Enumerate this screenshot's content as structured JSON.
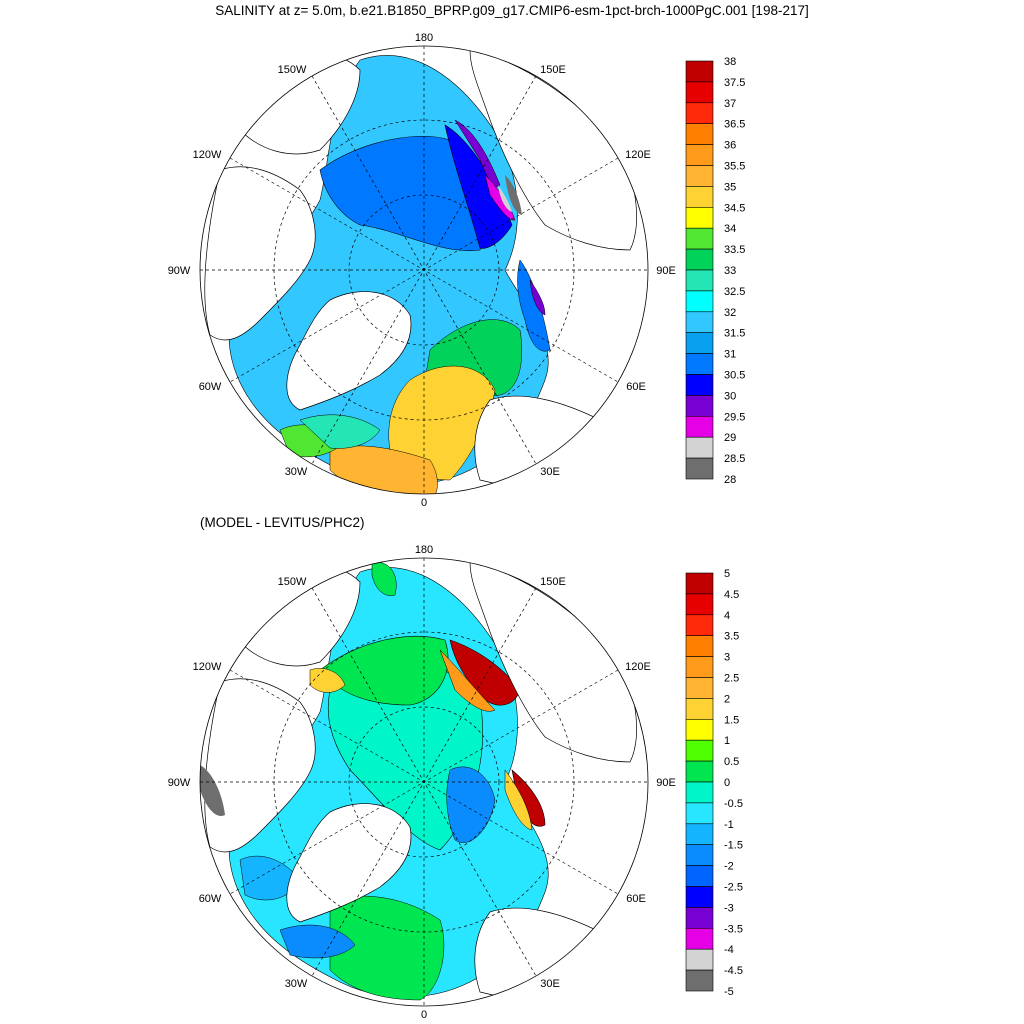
{
  "title": "SALINITY at z=   5.0m, b.e21.B1850_BPRP.g09_g17.CMIP6-esm-1pct-brch-1000PgC.001 [198-217]",
  "subtitle": "(MODEL - LEVITUS/PHC2)",
  "lon_labels": [
    "180",
    "150E",
    "120E",
    "90E",
    "60E",
    "30E",
    "0",
    "30W",
    "60W",
    "90W",
    "120W",
    "150W"
  ],
  "top_colorbar": {
    "labels": [
      "38",
      "37.5",
      "37",
      "36.5",
      "36",
      "35.5",
      "35",
      "34.5",
      "34",
      "33.5",
      "33",
      "32.5",
      "32",
      "31.5",
      "31",
      "30.5",
      "30",
      "29.5",
      "29",
      "28.5",
      "28"
    ],
    "colors": [
      "#c00000",
      "#e60000",
      "#ff2a0a",
      "#ff7f00",
      "#ff9a1a",
      "#ffb432",
      "#ffd233",
      "#ffff00",
      "#50e632",
      "#00d25a",
      "#24e6b4",
      "#00ffff",
      "#32c8ff",
      "#0aa0f0",
      "#0078ff",
      "#0000ff",
      "#7800d2",
      "#e600e6",
      "#d2d2d2",
      "#6e6e6e"
    ]
  },
  "bottom_colorbar": {
    "labels": [
      "5",
      "4.5",
      "4",
      "3.5",
      "3",
      "2.5",
      "2",
      "1.5",
      "1",
      "0.5",
      "0",
      "-0.5",
      "-1",
      "-1.5",
      "-2",
      "-2.5",
      "-3",
      "-3.5",
      "-4",
      "-4.5",
      "-5"
    ],
    "colors": [
      "#c00000",
      "#e60000",
      "#ff2a0a",
      "#ff7f00",
      "#ff9a1a",
      "#ffb432",
      "#ffd233",
      "#ffff00",
      "#50ff00",
      "#00e650",
      "#00f5c8",
      "#28e6ff",
      "#14b4ff",
      "#0a8cff",
      "#0064ff",
      "#0000ff",
      "#7800d2",
      "#e600e6",
      "#d2d2d2",
      "#6e6e6e"
    ]
  }
}
